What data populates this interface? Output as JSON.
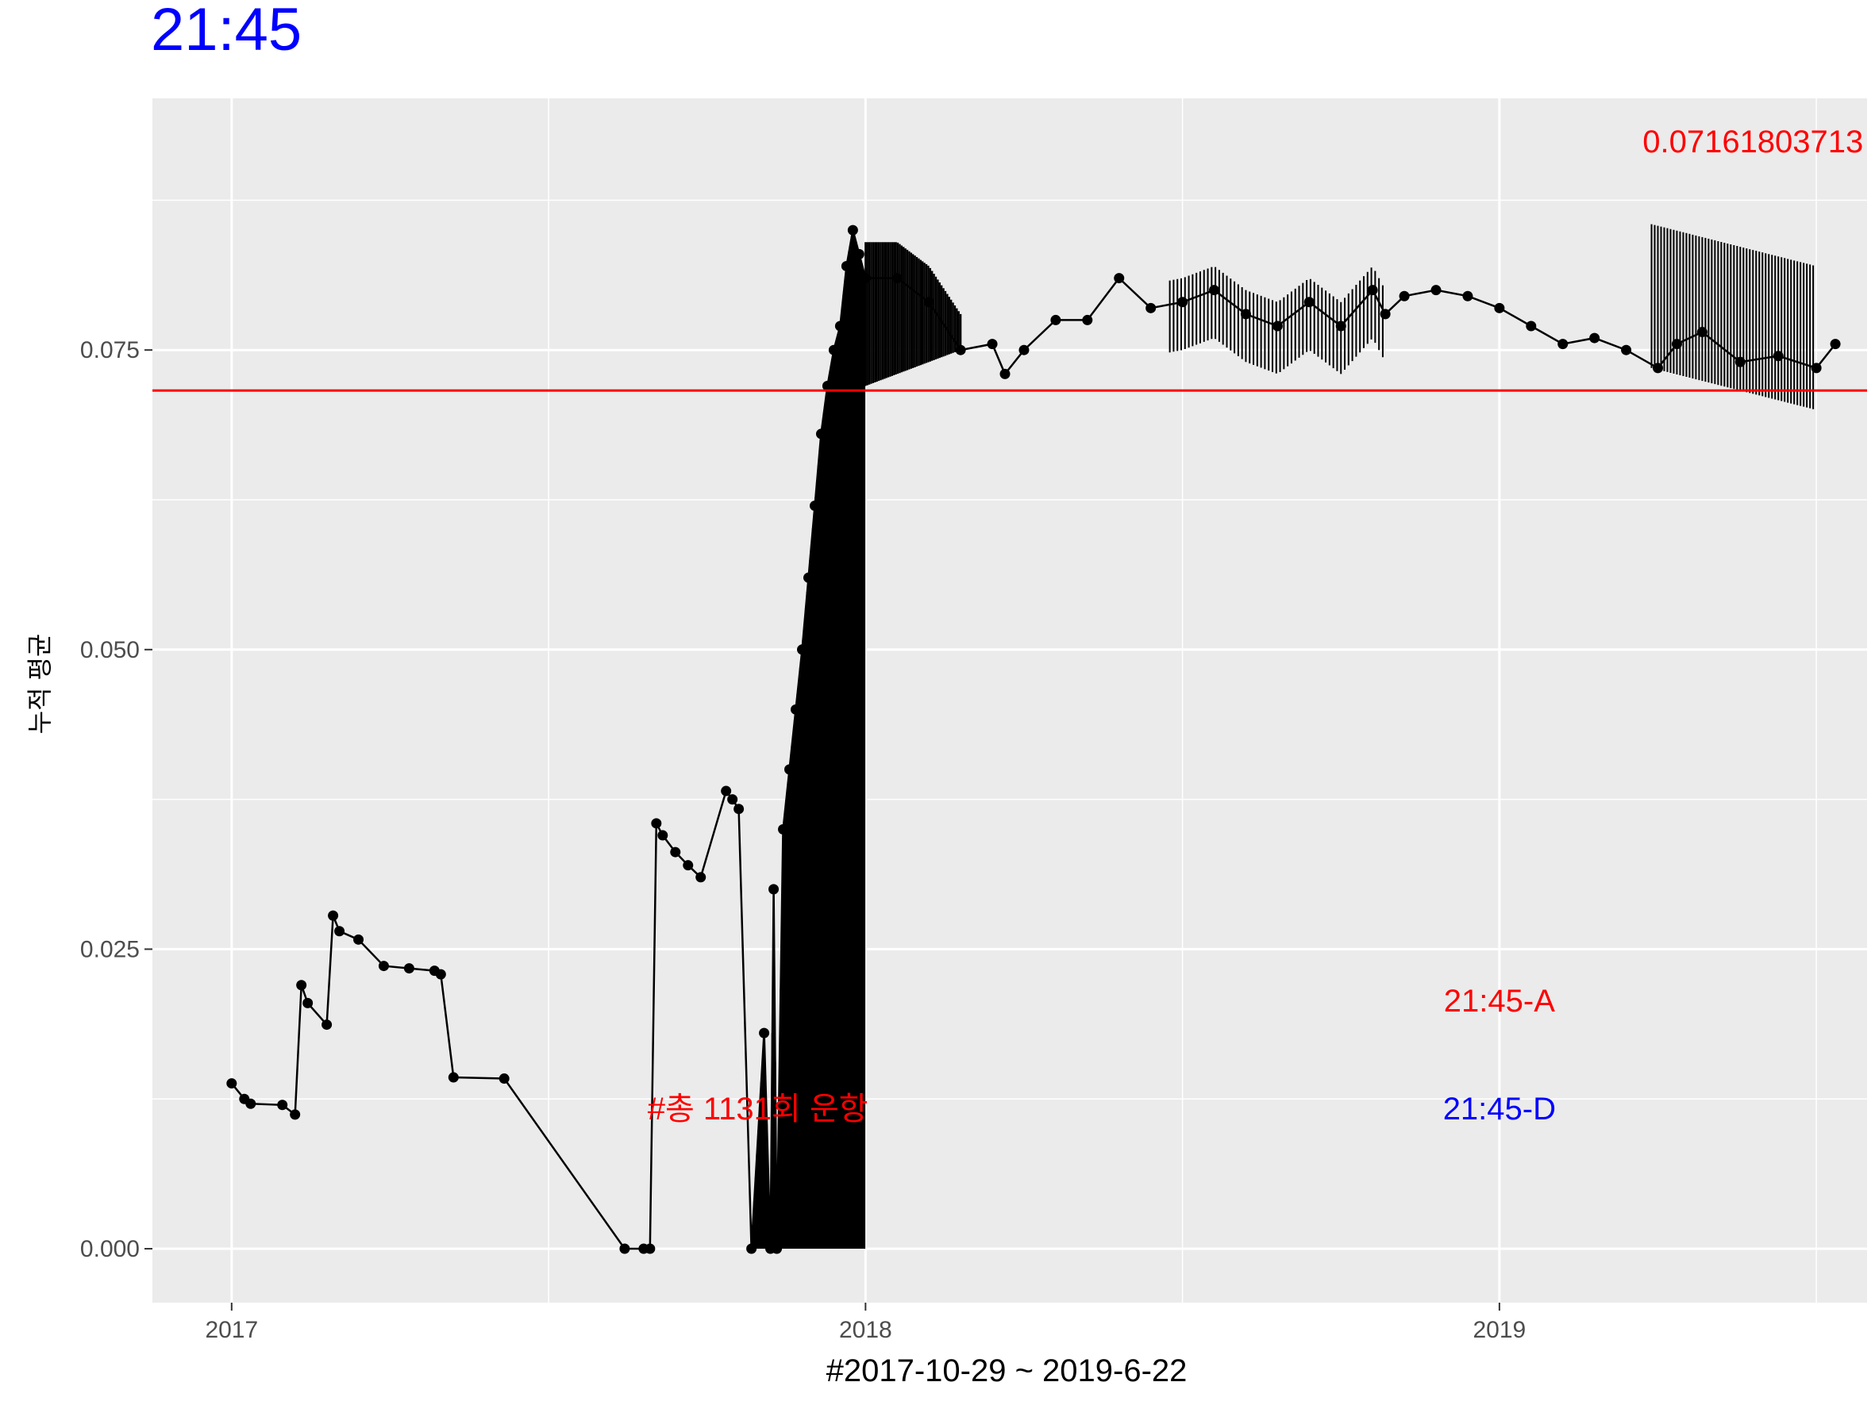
{
  "chart_data": {
    "type": "line",
    "title": "21:45",
    "xlabel": "#2017-10-29 ~ 2019-6-22",
    "ylabel": "누적 평균",
    "x_ticks": [
      "2017",
      "2018",
      "2019"
    ],
    "y_ticks": [
      "0.000",
      "0.025",
      "0.050",
      "0.075"
    ],
    "xlim": [
      2016.875,
      2019.58
    ],
    "ylim": [
      -0.0045,
      0.096
    ],
    "grid": true,
    "reference_line": {
      "y": 0.07161803713,
      "color": "#ff0000"
    },
    "annotations": [
      {
        "text": "0.07161803713",
        "x": 2019.4,
        "y": 0.0915,
        "color": "#ff0000"
      },
      {
        "text": "#총 1131회 운항",
        "x": 2017.83,
        "y": 0.0108,
        "color": "#ff0000"
      },
      {
        "text": "21:45-A",
        "x": 2019.0,
        "y": 0.0198,
        "color": "#ff0000"
      },
      {
        "text": "21:45-D",
        "x": 2019.0,
        "y": 0.0108,
        "color": "#0000ff"
      }
    ],
    "series": [
      {
        "color": "#000000",
        "x": [
          2017.0,
          2017.02,
          2017.03,
          2017.08,
          2017.1,
          2017.11,
          2017.12,
          2017.15,
          2017.16,
          2017.17,
          2017.2,
          2017.24,
          2017.28,
          2017.32,
          2017.33,
          2017.35,
          2017.43,
          2017.62,
          2017.65,
          2017.66,
          2017.67,
          2017.68,
          2017.7,
          2017.72,
          2017.74,
          2017.78,
          2017.79,
          2017.8,
          2017.82,
          2017.84,
          2017.85,
          2017.855,
          2017.86,
          2017.87,
          2017.88,
          2017.89,
          2017.9,
          2017.91,
          2017.92,
          2017.93,
          2017.94,
          2017.95,
          2017.96,
          2017.97,
          2017.98,
          2017.99,
          2018.0,
          2018.05,
          2018.1,
          2018.15,
          2018.2,
          2018.22,
          2018.25,
          2018.3,
          2018.35,
          2018.4,
          2018.45,
          2018.5,
          2018.55,
          2018.6,
          2018.65,
          2018.7,
          2018.75,
          2018.8,
          2018.82,
          2018.85,
          2018.9,
          2018.95,
          2019.0,
          2019.05,
          2019.1,
          2019.15,
          2019.2,
          2019.25,
          2019.28,
          2019.32,
          2019.38,
          2019.44,
          2019.5,
          2019.53
        ],
        "y": [
          0.0138,
          0.0125,
          0.0121,
          0.012,
          0.0112,
          0.022,
          0.0205,
          0.0187,
          0.0278,
          0.0265,
          0.0258,
          0.0236,
          0.0234,
          0.0232,
          0.0229,
          0.0143,
          0.0142,
          0.0,
          0.0,
          0.0,
          0.0355,
          0.0345,
          0.0331,
          0.032,
          0.031,
          0.0382,
          0.0375,
          0.0367,
          0.0,
          0.018,
          0.0,
          0.03,
          0.0,
          0.035,
          0.04,
          0.045,
          0.05,
          0.056,
          0.062,
          0.068,
          0.072,
          0.075,
          0.077,
          0.082,
          0.085,
          0.083,
          0.081,
          0.081,
          0.079,
          0.075,
          0.0755,
          0.073,
          0.075,
          0.0775,
          0.0775,
          0.081,
          0.0785,
          0.079,
          0.08,
          0.078,
          0.077,
          0.079,
          0.077,
          0.08,
          0.078,
          0.0795,
          0.08,
          0.0795,
          0.0785,
          0.077,
          0.0755,
          0.076,
          0.075,
          0.0735,
          0.0755,
          0.0765,
          0.074,
          0.0745,
          0.0735,
          0.0755
        ]
      }
    ]
  }
}
